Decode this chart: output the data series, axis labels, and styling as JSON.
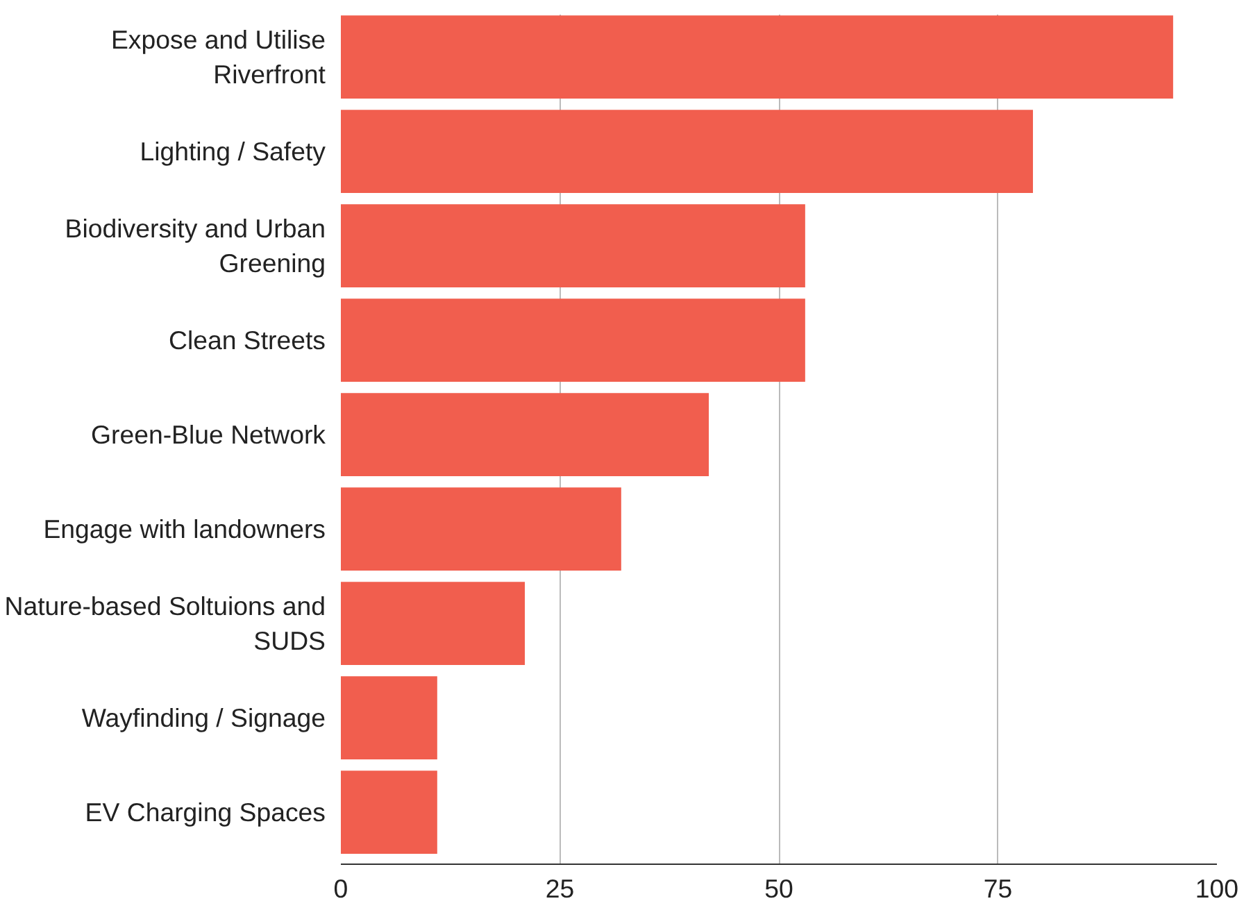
{
  "chart_data": {
    "type": "bar",
    "orientation": "horizontal",
    "categories": [
      "Expose and Utilise Riverfront",
      "Lighting / Safety",
      "Biodiversity and Urban Greening",
      "Clean Streets",
      "Green-Blue Network",
      "Engage with landowners",
      "Nature-based Soltuions and SUDS",
      "Wayfinding / Signage",
      "EV Charging Spaces"
    ],
    "values": [
      95,
      79,
      53,
      53,
      42,
      32,
      21,
      11,
      11
    ],
    "color": "#f15e4e",
    "xlim": [
      0,
      100
    ],
    "xticks": [
      0,
      25,
      50,
      75,
      100
    ],
    "grid": "x"
  }
}
